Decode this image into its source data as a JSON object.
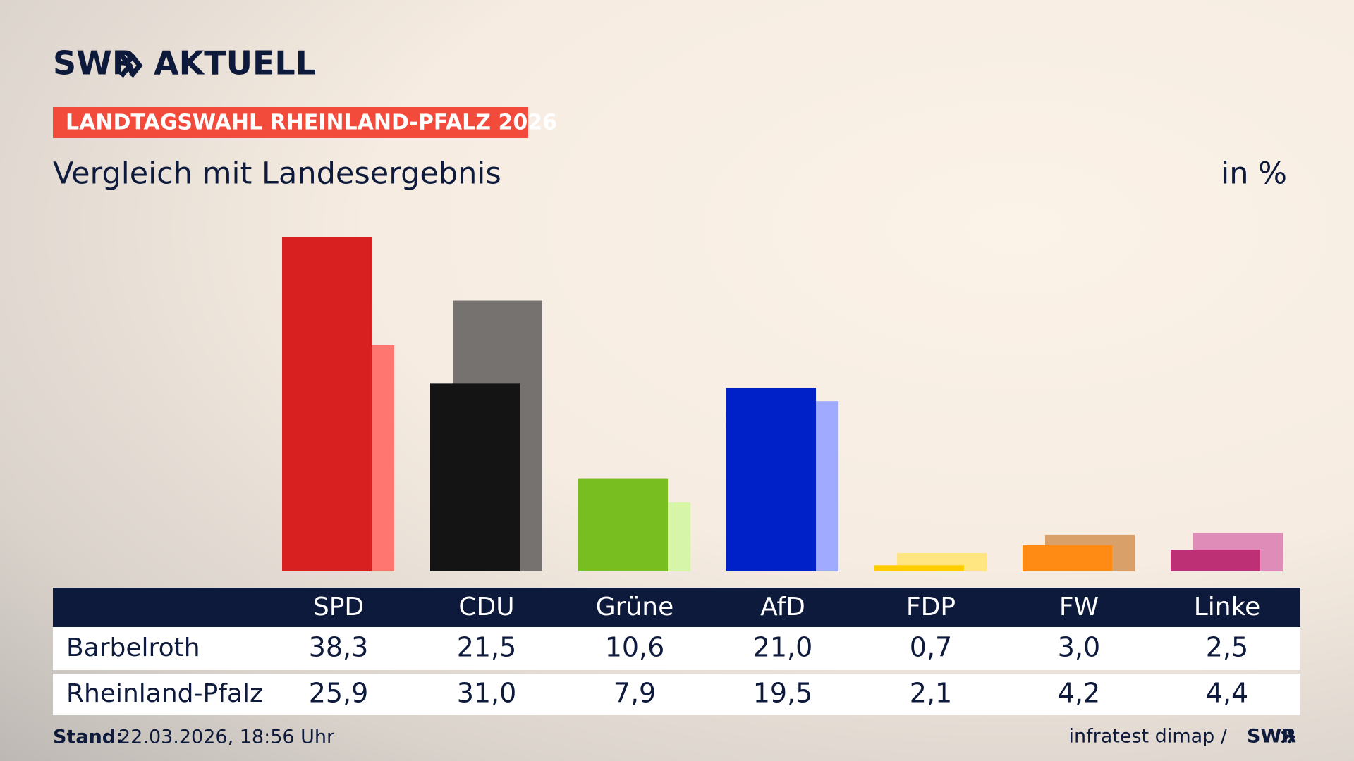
{
  "chart_data": {
    "type": "bar",
    "brand": "SWR",
    "brand_suffix": "AKTUELL",
    "badge": "LANDTAGSWAHL RHEINLAND-PFALZ 2026",
    "title": "Vergleich mit Landesergebnis",
    "unit": "in %",
    "categories": [
      "SPD",
      "CDU",
      "Grüne",
      "AfD",
      "FDP",
      "FW",
      "Linke"
    ],
    "series": [
      {
        "name": "Barbelroth",
        "colors": [
          "#d82020",
          "#141414",
          "#78be20",
          "#0020c8",
          "#ffcc00",
          "#ff8a14",
          "#be3075"
        ],
        "values": [
          38.3,
          21.5,
          10.6,
          21.0,
          0.7,
          3.0,
          2.5
        ],
        "value_labels": [
          "38,3",
          "21,5",
          "10,6",
          "21,0",
          "0,7",
          "3,0",
          "2,5"
        ]
      },
      {
        "name": "Rheinland-Pfalz",
        "colors": [
          "#ff7670",
          "#767270",
          "#d7f5a8",
          "#a0aaff",
          "#ffe680",
          "#d9a06a",
          "#e08cb8"
        ],
        "values": [
          25.9,
          31.0,
          7.9,
          19.5,
          2.1,
          4.2,
          4.4
        ],
        "value_labels": [
          "25,9",
          "31,0",
          "7,9",
          "19,5",
          "2,1",
          "4,2",
          "4,4"
        ]
      }
    ],
    "footer_label": "Stand:",
    "footer_date": "22.03.2026, 18:56 Uhr",
    "source": "infratest dimap /",
    "source_brand": "SWR"
  }
}
